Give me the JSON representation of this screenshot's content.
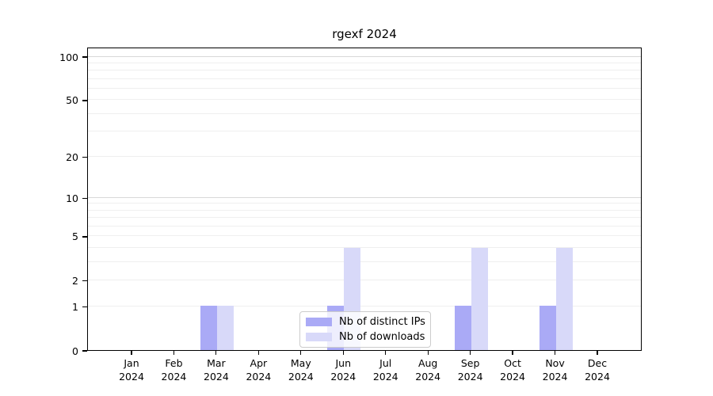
{
  "colors": {
    "background": "#ffffff",
    "axis": "#000000",
    "text": "#000000",
    "grid_major": "#d8d8d8",
    "grid_minor": "#efefef",
    "legend_border": "#cccccc"
  },
  "chart_data": {
    "type": "bar",
    "title": "rgexf 2024",
    "y_scale": "log1p",
    "ylim": [
      0,
      100
    ],
    "y_ticks": [
      0,
      1,
      2,
      5,
      10,
      20,
      50,
      100
    ],
    "grid_major_values": [
      10,
      100
    ],
    "grid_minor_values": [
      1,
      2,
      3,
      4,
      5,
      6,
      7,
      8,
      9,
      20,
      30,
      40,
      50,
      60,
      70,
      80,
      90
    ],
    "categories": [
      {
        "month": "Jan",
        "year": "2024"
      },
      {
        "month": "Feb",
        "year": "2024"
      },
      {
        "month": "Mar",
        "year": "2024"
      },
      {
        "month": "Apr",
        "year": "2024"
      },
      {
        "month": "May",
        "year": "2024"
      },
      {
        "month": "Jun",
        "year": "2024"
      },
      {
        "month": "Jul",
        "year": "2024"
      },
      {
        "month": "Aug",
        "year": "2024"
      },
      {
        "month": "Sep",
        "year": "2024"
      },
      {
        "month": "Oct",
        "year": "2024"
      },
      {
        "month": "Nov",
        "year": "2024"
      },
      {
        "month": "Dec",
        "year": "2024"
      }
    ],
    "series": [
      {
        "name": "Nb of distinct IPs",
        "color": "#aaaaf6",
        "values": [
          0,
          0,
          1,
          0,
          0,
          1,
          0,
          0,
          1,
          0,
          1,
          0
        ]
      },
      {
        "name": "Nb of downloads",
        "color": "#d8d9f9",
        "values": [
          0,
          0,
          1,
          0,
          0,
          4,
          0,
          0,
          4,
          0,
          4,
          0
        ]
      }
    ],
    "legend": {
      "position": "bottom-center",
      "entries": [
        "Nb of distinct IPs",
        "Nb of downloads"
      ]
    }
  }
}
